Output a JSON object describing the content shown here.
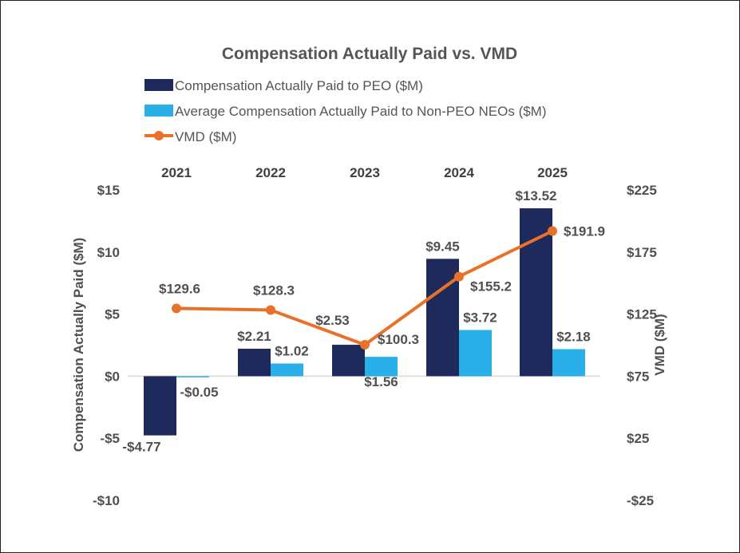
{
  "chart_data": {
    "type": "bar+line",
    "title": "Compensation Actually Paid vs. VMD",
    "categories": [
      "2021",
      "2022",
      "2023",
      "2024",
      "2025"
    ],
    "series": [
      {
        "name": "Compensation Actually Paid to PEO ($M)",
        "type": "bar",
        "axis": "left",
        "color": "#1f2a5c",
        "values": [
          -4.77,
          2.21,
          2.53,
          9.45,
          13.52
        ],
        "labels": [
          "-$4.77",
          "$2.21",
          "$2.53",
          "$9.45",
          "$13.52"
        ]
      },
      {
        "name": "Average Compensation Actually Paid to Non-PEO NEOs ($M)",
        "type": "bar",
        "axis": "left",
        "color": "#2ab0e8",
        "values": [
          -0.05,
          1.02,
          1.56,
          3.72,
          2.18
        ],
        "labels": [
          "-$0.05",
          "$1.02",
          "$1.56",
          "$3.72",
          "$2.18"
        ]
      },
      {
        "name": "VMD ($M)",
        "type": "line",
        "axis": "right",
        "color": "#e8722a",
        "values": [
          129.6,
          128.3,
          100.3,
          155.2,
          191.9
        ],
        "labels": [
          "$129.6",
          "$128.3",
          "$100.3",
          "$155.2",
          "$191.9"
        ]
      }
    ],
    "left_axis": {
      "label": "Compensation Actually Paid ($M)",
      "ylim": [
        -10,
        15
      ],
      "ticks": [
        15,
        10,
        5,
        0,
        -5,
        -10
      ],
      "tick_labels": [
        "$15",
        "$10",
        "$5",
        "$0",
        "-$5",
        "-$10"
      ]
    },
    "right_axis": {
      "label": "VMD ($M)",
      "ylim": [
        -25,
        225
      ],
      "ticks": [
        225,
        175,
        125,
        75,
        25,
        -25
      ],
      "tick_labels": [
        "$225",
        "$175",
        "$125",
        "$75",
        "$25",
        "-$25"
      ]
    },
    "legend_position": "top",
    "grid": false
  }
}
